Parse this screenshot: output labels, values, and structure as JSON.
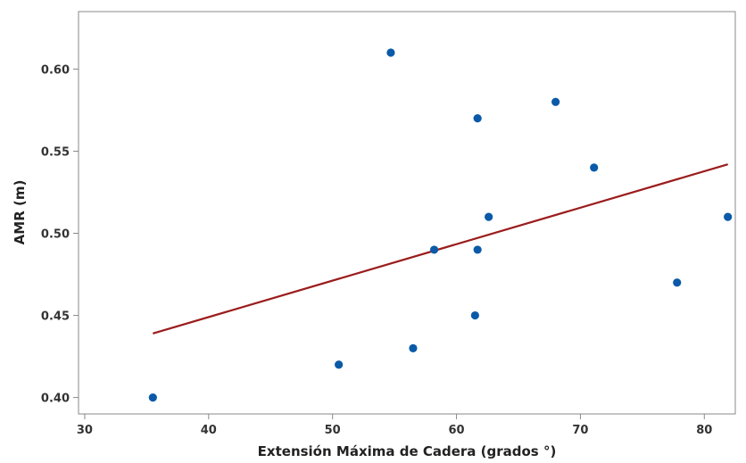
{
  "chart_data": {
    "type": "scatter",
    "title": "",
    "xlabel": "Extensión Máxima de Cadera (grados °)",
    "ylabel": "AMR (m)",
    "xlim": [
      29.5,
      82.5
    ],
    "ylim": [
      0.39,
      0.635
    ],
    "x_ticks": [
      30,
      40,
      50,
      60,
      70,
      80
    ],
    "y_ticks": [
      0.4,
      0.45,
      0.5,
      0.55,
      0.6
    ],
    "x_tick_labels": [
      "30",
      "40",
      "50",
      "60",
      "70",
      "80"
    ],
    "y_tick_labels": [
      "0.40",
      "0.45",
      "0.50",
      "0.55",
      "0.60"
    ],
    "points": [
      {
        "x": 35.5,
        "y": 0.4
      },
      {
        "x": 50.5,
        "y": 0.42
      },
      {
        "x": 54.7,
        "y": 0.61
      },
      {
        "x": 56.5,
        "y": 0.43
      },
      {
        "x": 58.2,
        "y": 0.49
      },
      {
        "x": 61.5,
        "y": 0.45
      },
      {
        "x": 61.7,
        "y": 0.57
      },
      {
        "x": 61.7,
        "y": 0.49
      },
      {
        "x": 62.6,
        "y": 0.51
      },
      {
        "x": 68.0,
        "y": 0.58
      },
      {
        "x": 71.1,
        "y": 0.54
      },
      {
        "x": 77.8,
        "y": 0.47
      },
      {
        "x": 81.9,
        "y": 0.51
      }
    ],
    "fit_line": {
      "x": [
        35.5,
        81.9
      ],
      "y": [
        0.439,
        0.542
      ]
    },
    "grid": false,
    "colors": {
      "points": "#0a5aa8",
      "fit_line": "#9b1c1c",
      "frame": "#888888"
    }
  }
}
